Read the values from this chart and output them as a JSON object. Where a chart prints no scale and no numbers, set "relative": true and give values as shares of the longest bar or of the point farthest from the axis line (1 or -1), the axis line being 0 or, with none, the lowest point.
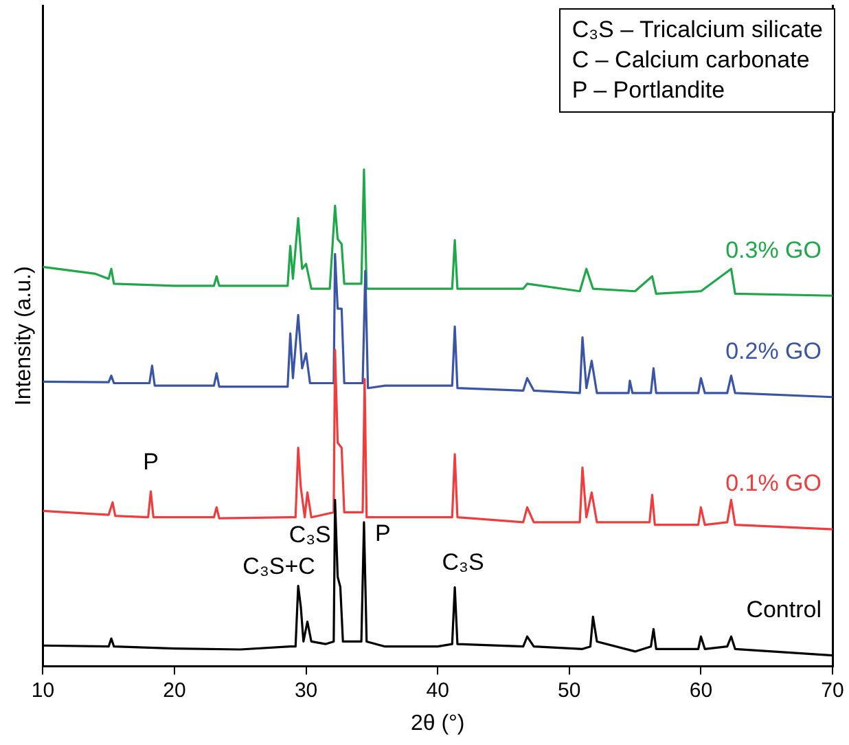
{
  "chart_data": {
    "type": "line",
    "relative": true,
    "xlabel": "2θ (°)",
    "ylabel": "Intensity (a.u.)",
    "xlim": [
      10,
      70
    ],
    "xticks": [
      10,
      20,
      30,
      40,
      50,
      60,
      70
    ],
    "grid": false,
    "legend": false,
    "marker": "none",
    "line_style": "solid",
    "series": [
      {
        "name": "Control",
        "color": "#000000",
        "x": [
          10,
          15,
          15.2,
          15.4,
          20,
          25,
          28.8,
          29.2,
          29.4,
          29.6,
          29.8,
          30.1,
          30.4,
          31.5,
          32.1,
          32.2,
          32.4,
          32.6,
          32.8,
          34.2,
          34.4,
          34.6,
          36,
          40,
          41.1,
          41.3,
          41.5,
          46.5,
          46.8,
          47.3,
          51,
          51.6,
          51.8,
          52.1,
          55,
          56.2,
          56.4,
          56.6,
          59.8,
          60,
          60.3,
          62,
          62.3,
          62.6,
          70
        ],
        "values": [
          0.042,
          0.04,
          0.056,
          0.04,
          0.036,
          0.034,
          0.04,
          0.04,
          0.162,
          0.12,
          0.05,
          0.09,
          0.05,
          0.045,
          0.05,
          0.335,
          0.18,
          0.16,
          0.05,
          0.05,
          0.29,
          0.05,
          0.04,
          0.04,
          0.045,
          0.159,
          0.045,
          0.04,
          0.06,
          0.04,
          0.035,
          0.04,
          0.1,
          0.05,
          0.03,
          0.04,
          0.075,
          0.035,
          0.035,
          0.06,
          0.035,
          0.04,
          0.06,
          0.035,
          0.022
        ]
      },
      {
        "name": "0.1% GO",
        "color": "#f03c3c",
        "x": [
          10,
          15,
          15.3,
          15.5,
          18,
          18.2,
          18.4,
          23,
          23.2,
          23.4,
          28.8,
          29.2,
          29.4,
          29.6,
          29.9,
          30.1,
          30.4,
          32.1,
          32.2,
          32.4,
          32.7,
          32.9,
          34.3,
          34.45,
          34.6,
          36,
          41.1,
          41.3,
          41.5,
          46.5,
          46.8,
          47.3,
          50.8,
          51,
          51.3,
          51.7,
          52.1,
          56.1,
          56.3,
          56.5,
          59.8,
          60,
          60.3,
          62,
          62.3,
          62.6,
          70
        ],
        "values": [
          0.313,
          0.305,
          0.33,
          0.303,
          0.3,
          0.352,
          0.3,
          0.3,
          0.32,
          0.298,
          0.3,
          0.3,
          0.44,
          0.36,
          0.3,
          0.35,
          0.3,
          0.31,
          0.637,
          0.45,
          0.44,
          0.31,
          0.31,
          0.578,
          0.3,
          0.3,
          0.3,
          0.427,
          0.3,
          0.29,
          0.32,
          0.29,
          0.29,
          0.4,
          0.3,
          0.35,
          0.29,
          0.29,
          0.345,
          0.285,
          0.285,
          0.32,
          0.285,
          0.29,
          0.335,
          0.285,
          0.276
        ]
      },
      {
        "name": "0.2% GO",
        "color": "#3a55a6",
        "x": [
          10,
          15,
          15.2,
          15.4,
          18.1,
          18.3,
          18.5,
          23,
          23.2,
          23.4,
          28.6,
          28.8,
          29,
          29.4,
          29.7,
          30,
          30.3,
          32.1,
          32.2,
          32.4,
          32.7,
          32.9,
          34.3,
          34.5,
          34.7,
          36,
          41.1,
          41.3,
          41.5,
          46.5,
          46.8,
          47.3,
          50.8,
          51,
          51.3,
          51.7,
          52.1,
          54.5,
          54.6,
          54.8,
          56.2,
          56.4,
          56.6,
          59.8,
          60,
          60.3,
          62,
          62.3,
          62.6,
          70
        ],
        "values": [
          0.573,
          0.572,
          0.585,
          0.57,
          0.57,
          0.605,
          0.565,
          0.565,
          0.59,
          0.563,
          0.563,
          0.67,
          0.58,
          0.707,
          0.6,
          0.63,
          0.57,
          0.57,
          0.83,
          0.72,
          0.72,
          0.57,
          0.57,
          0.796,
          0.56,
          0.565,
          0.565,
          0.684,
          0.56,
          0.555,
          0.58,
          0.555,
          0.55,
          0.662,
          0.56,
          0.615,
          0.55,
          0.55,
          0.575,
          0.55,
          0.55,
          0.6,
          0.55,
          0.55,
          0.58,
          0.55,
          0.55,
          0.585,
          0.55,
          0.542
        ]
      },
      {
        "name": "0.3% GO",
        "color": "#1fa84a",
        "x": [
          10,
          14,
          15,
          15.2,
          15.4,
          20,
          23,
          23.2,
          23.4,
          28.6,
          28.8,
          29,
          29.4,
          29.7,
          30,
          30.4,
          31.8,
          32.2,
          32.4,
          32.7,
          32.9,
          34.2,
          34.4,
          34.6,
          36,
          41.1,
          41.3,
          41.5,
          46.5,
          46.8,
          50.8,
          51.3,
          51.8,
          55,
          56.3,
          56.6,
          60,
          62.3,
          62.6,
          70
        ],
        "values": [
          0.804,
          0.79,
          0.78,
          0.8,
          0.77,
          0.766,
          0.766,
          0.785,
          0.766,
          0.766,
          0.846,
          0.78,
          0.902,
          0.8,
          0.81,
          0.76,
          0.76,
          0.927,
          0.86,
          0.85,
          0.77,
          0.77,
          1,
          0.76,
          0.76,
          0.76,
          0.858,
          0.76,
          0.76,
          0.77,
          0.755,
          0.8,
          0.76,
          0.755,
          0.785,
          0.75,
          0.755,
          0.8,
          0.75,
          0.746
        ]
      }
    ],
    "annotations": [
      "C₃S – Tricalcium silicate",
      "C – Calcium carbonate",
      "P – Portlandite",
      {
        "text": "P",
        "x": 18.2,
        "y": 0.352
      },
      {
        "text": "C₃S",
        "x": 32.2,
        "y": 0.335
      },
      {
        "text": "C₃S+C",
        "x": 29.4,
        "y": 0.162
      },
      {
        "text": "P",
        "x": 34.4,
        "y": 0.29
      },
      {
        "text": "C₃S",
        "x": 41.3,
        "y": 0.159
      }
    ]
  }
}
